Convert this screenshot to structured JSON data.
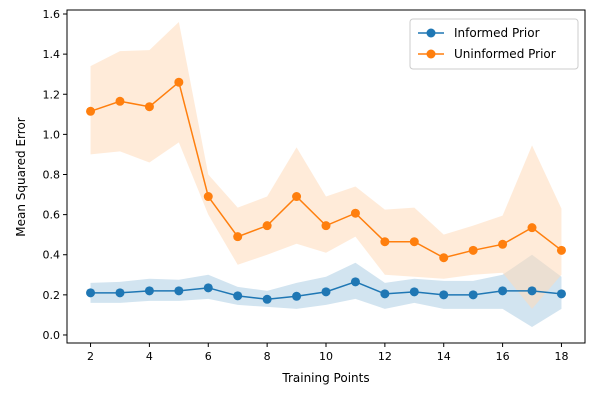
{
  "chart_data": {
    "type": "line",
    "xlabel": "Training Points",
    "ylabel": "Mean Squared Error",
    "xlim": [
      1.2,
      18.8
    ],
    "ylim": [
      -0.04,
      1.62
    ],
    "xticks": [
      2,
      4,
      6,
      8,
      10,
      12,
      14,
      16,
      18
    ],
    "yticks": [
      0.0,
      0.2,
      0.4,
      0.6,
      0.8,
      1.0,
      1.2,
      1.4,
      1.6
    ],
    "ytick_labels": [
      "0.0",
      "0.2",
      "0.4",
      "0.6",
      "0.8",
      "1.0",
      "1.2",
      "1.4",
      "1.6"
    ],
    "grid": false,
    "legend_position": "top-right",
    "x": [
      2,
      3,
      4,
      5,
      6,
      7,
      8,
      9,
      10,
      11,
      12,
      13,
      14,
      15,
      16,
      17,
      18
    ],
    "series": [
      {
        "name": "Informed Prior",
        "color": "#1f77b4",
        "band_color": "#1f77b4",
        "values": [
          0.21,
          0.21,
          0.22,
          0.22,
          0.235,
          0.195,
          0.178,
          0.193,
          0.215,
          0.265,
          0.205,
          0.215,
          0.2,
          0.2,
          0.22,
          0.22,
          0.205
        ],
        "lower": [
          0.16,
          0.16,
          0.17,
          0.17,
          0.18,
          0.15,
          0.14,
          0.13,
          0.15,
          0.18,
          0.13,
          0.16,
          0.13,
          0.13,
          0.13,
          0.04,
          0.13
        ],
        "upper": [
          0.26,
          0.265,
          0.28,
          0.275,
          0.3,
          0.24,
          0.22,
          0.26,
          0.29,
          0.36,
          0.26,
          0.28,
          0.27,
          0.27,
          0.3,
          0.4,
          0.29
        ]
      },
      {
        "name": "Uninformed Prior",
        "color": "#ff7f0e",
        "band_color": "#ffdab9",
        "values": [
          1.115,
          1.165,
          1.138,
          1.26,
          0.69,
          0.49,
          0.545,
          0.69,
          0.545,
          0.607,
          0.465,
          0.465,
          0.385,
          0.422,
          0.452,
          0.535,
          0.422
        ],
        "lower": [
          0.9,
          0.915,
          0.86,
          0.96,
          0.6,
          0.35,
          0.4,
          0.455,
          0.41,
          0.49,
          0.3,
          0.29,
          0.28,
          0.3,
          0.31,
          0.13,
          0.3
        ],
        "upper": [
          1.34,
          1.415,
          1.42,
          1.56,
          0.8,
          0.635,
          0.69,
          0.935,
          0.69,
          0.74,
          0.625,
          0.635,
          0.5,
          0.545,
          0.595,
          0.945,
          0.63
        ]
      }
    ]
  }
}
